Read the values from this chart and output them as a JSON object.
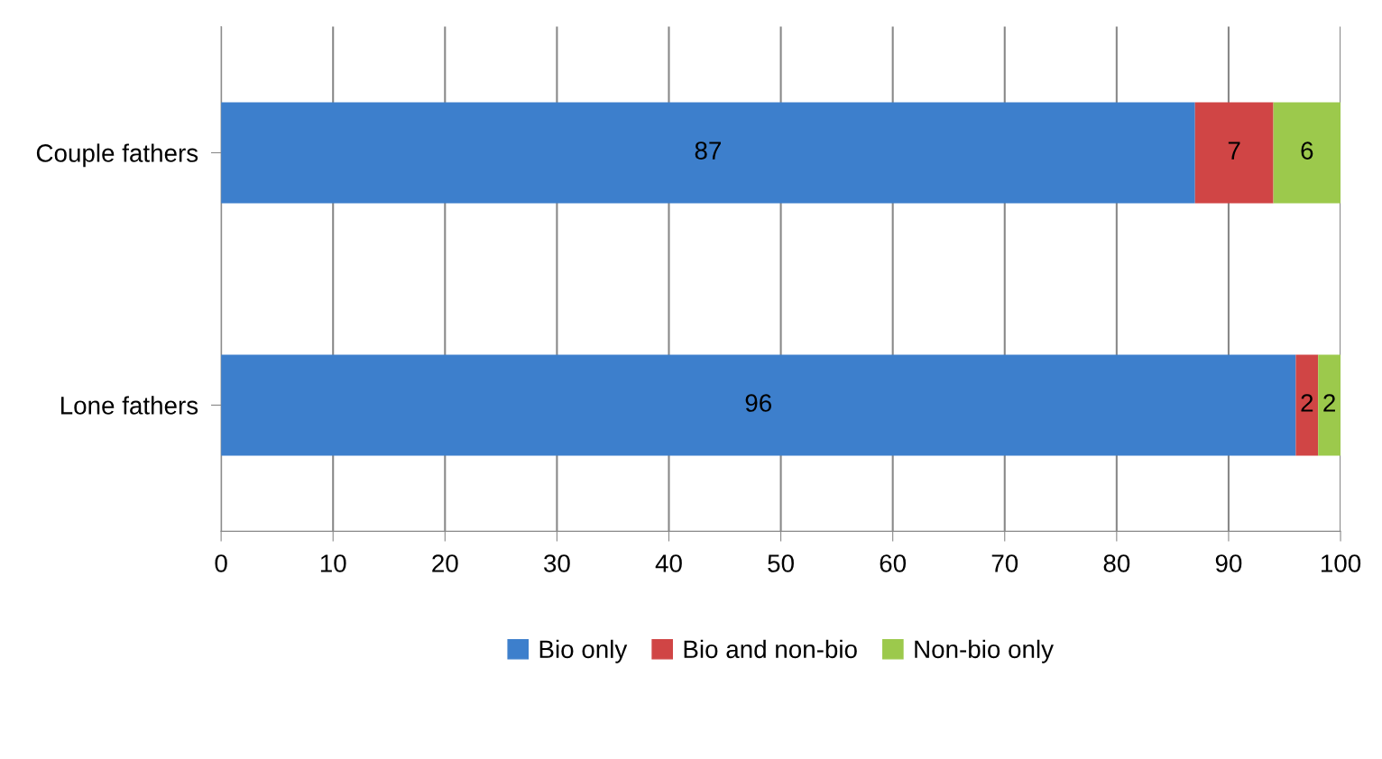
{
  "chart_data": {
    "type": "bar",
    "orientation": "horizontal",
    "stacked": true,
    "categories": [
      "Couple fathers",
      "Lone fathers"
    ],
    "series": [
      {
        "name": "Bio only",
        "color": "#3d7fcc",
        "values": [
          87,
          96
        ]
      },
      {
        "name": "Bio and non-bio",
        "color": "#d04545",
        "values": [
          7,
          2
        ]
      },
      {
        "name": "Non-bio only",
        "color": "#9cc94c",
        "values": [
          6,
          2
        ]
      }
    ],
    "xlim": [
      0,
      100
    ],
    "xticks": [
      0,
      10,
      20,
      30,
      40,
      50,
      60,
      70,
      80,
      90,
      100
    ],
    "grid": "x",
    "legend": "bottom",
    "data_labels": true
  }
}
